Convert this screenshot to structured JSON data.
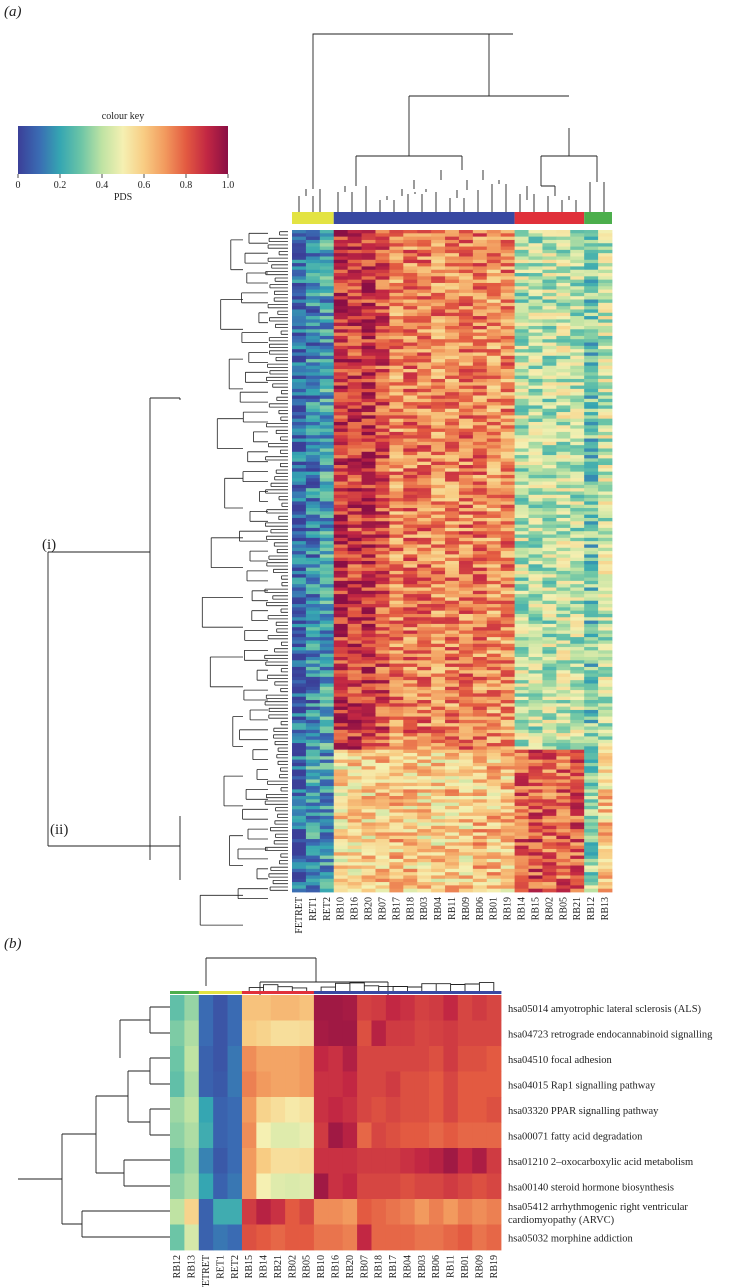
{
  "panels": [
    {
      "label": "(a)",
      "letter": "a"
    },
    {
      "label": "(b)",
      "letter": "b"
    }
  ],
  "colour_key": {
    "title": "colour key",
    "axis_label": "PDS",
    "ticks": [
      "0",
      "0.2",
      "0.4",
      "0.6",
      "0.8",
      "1.0"
    ],
    "tick_values": [
      0,
      0.2,
      0.4,
      0.6,
      0.8,
      1.0
    ],
    "colormap": [
      "#3b3f98",
      "#3a6bb3",
      "#35a6b2",
      "#6cc5a6",
      "#bfe3a3",
      "#f5f0b2",
      "#f8cc83",
      "#f29a5e",
      "#e35a41",
      "#c22743",
      "#8a0f45"
    ]
  },
  "cluster_labels": [
    "(i)",
    "(ii)"
  ],
  "chart_data": [
    {
      "type": "heatmap",
      "panel": "a",
      "columns": [
        "FETRET",
        "RET1",
        "RET2",
        "RB10",
        "RB16",
        "RB20",
        "RB07",
        "RB17",
        "RB18",
        "RB03",
        "RB04",
        "RB11",
        "RB09",
        "RB06",
        "RB01",
        "RB19",
        "RB14",
        "RB15",
        "RB02",
        "RB05",
        "RB21",
        "RB12",
        "RB13"
      ],
      "column_groups": [
        {
          "color": "#e3e342",
          "columns": [
            "FETRET",
            "RET1",
            "RET2"
          ]
        },
        {
          "color": "#3848a2",
          "columns": [
            "RB10",
            "RB16",
            "RB20",
            "RB07",
            "RB17",
            "RB18",
            "RB03",
            "RB04",
            "RB11",
            "RB09",
            "RB06",
            "RB01",
            "RB19"
          ]
        },
        {
          "color": "#e0303a",
          "columns": [
            "RB14",
            "RB15",
            "RB02",
            "RB05",
            "RB21"
          ]
        },
        {
          "color": "#4cae4c",
          "columns": [
            "RB12",
            "RB13"
          ]
        }
      ],
      "row_count": 200,
      "row_clusters": [
        {
          "label": "(i)",
          "rows": 157
        },
        {
          "label": "(ii)",
          "rows": 43
        }
      ],
      "column_profile_cluster_i": [
        0.08,
        0.15,
        0.2,
        0.88,
        0.86,
        0.88,
        0.82,
        0.72,
        0.74,
        0.74,
        0.72,
        0.72,
        0.74,
        0.74,
        0.7,
        0.72,
        0.4,
        0.4,
        0.4,
        0.42,
        0.4,
        0.3,
        0.42
      ],
      "column_profile_cluster_ii": [
        0.08,
        0.2,
        0.2,
        0.55,
        0.58,
        0.58,
        0.6,
        0.62,
        0.6,
        0.58,
        0.58,
        0.6,
        0.58,
        0.62,
        0.62,
        0.6,
        0.8,
        0.82,
        0.78,
        0.78,
        0.8,
        0.35,
        0.6
      ],
      "value_range": [
        0,
        1
      ]
    },
    {
      "type": "heatmap",
      "panel": "b",
      "columns": [
        "RB12",
        "RB13",
        "FETRET",
        "RET1",
        "RET2",
        "RB15",
        "RB14",
        "RB21",
        "RB02",
        "RB05",
        "RB10",
        "RB16",
        "RB20",
        "RB07",
        "RB18",
        "RB17",
        "RB04",
        "RB03",
        "RB06",
        "RB11",
        "RB01",
        "RB09",
        "RB19"
      ],
      "column_group_colors": [
        "#4cae4c",
        "#4cae4c",
        "#e3e342",
        "#e3e342",
        "#e3e342",
        "#e0303a",
        "#e0303a",
        "#e0303a",
        "#e0303a",
        "#e0303a",
        "#3848a2",
        "#3848a2",
        "#3848a2",
        "#3848a2",
        "#3848a2",
        "#3848a2",
        "#3848a2",
        "#3848a2",
        "#3848a2",
        "#3848a2",
        "#3848a2",
        "#3848a2",
        "#3848a2"
      ],
      "rows": [
        "hsa05014 amyotrophic lateral sclerosis (ALS)",
        "hsa04723 retrograde endocannabinoid signalling",
        "hsa04510 focal adhesion",
        "hsa04015 Rap1 signalling pathway",
        "hsa03320 PPAR signalling pathway",
        "hsa00071 fatty acid degradation",
        "hsa01210 2–oxocarboxylic acid metabolism",
        "hsa00140 steroid hormone biosynthesis",
        "hsa05412 arrhythmogenic right ventricular cardiomyopathy (ARVC)",
        "hsa05032 morphine addiction"
      ],
      "values": [
        [
          0.28,
          0.35,
          0.1,
          0.05,
          0.1,
          0.62,
          0.62,
          0.64,
          0.64,
          0.62,
          0.96,
          0.96,
          0.95,
          0.85,
          0.86,
          0.9,
          0.88,
          0.85,
          0.86,
          0.9,
          0.84,
          0.86,
          0.84
        ],
        [
          0.32,
          0.38,
          0.1,
          0.05,
          0.1,
          0.6,
          0.58,
          0.55,
          0.55,
          0.56,
          0.95,
          0.96,
          0.96,
          0.82,
          0.92,
          0.86,
          0.86,
          0.84,
          0.85,
          0.86,
          0.84,
          0.84,
          0.84
        ],
        [
          0.3,
          0.4,
          0.08,
          0.05,
          0.12,
          0.72,
          0.68,
          0.68,
          0.68,
          0.7,
          0.9,
          0.88,
          0.93,
          0.84,
          0.84,
          0.84,
          0.84,
          0.84,
          0.82,
          0.86,
          0.82,
          0.82,
          0.8
        ],
        [
          0.28,
          0.38,
          0.08,
          0.06,
          0.12,
          0.74,
          0.7,
          0.68,
          0.68,
          0.7,
          0.88,
          0.88,
          0.9,
          0.84,
          0.84,
          0.86,
          0.82,
          0.82,
          0.8,
          0.84,
          0.8,
          0.8,
          0.8
        ],
        [
          0.36,
          0.4,
          0.2,
          0.08,
          0.1,
          0.7,
          0.58,
          0.55,
          0.52,
          0.54,
          0.88,
          0.9,
          0.88,
          0.84,
          0.82,
          0.84,
          0.82,
          0.82,
          0.8,
          0.84,
          0.8,
          0.8,
          0.82
        ],
        [
          0.34,
          0.38,
          0.22,
          0.08,
          0.1,
          0.72,
          0.5,
          0.46,
          0.46,
          0.48,
          0.86,
          0.96,
          0.92,
          0.78,
          0.84,
          0.82,
          0.8,
          0.8,
          0.78,
          0.8,
          0.78,
          0.78,
          0.78
        ],
        [
          0.3,
          0.36,
          0.14,
          0.06,
          0.1,
          0.7,
          0.6,
          0.55,
          0.55,
          0.56,
          0.88,
          0.88,
          0.88,
          0.86,
          0.86,
          0.86,
          0.88,
          0.9,
          0.92,
          0.96,
          0.9,
          0.94,
          0.86
        ],
        [
          0.34,
          0.38,
          0.2,
          0.08,
          0.12,
          0.7,
          0.5,
          0.46,
          0.45,
          0.46,
          0.96,
          0.88,
          0.9,
          0.84,
          0.84,
          0.84,
          0.82,
          0.84,
          0.84,
          0.86,
          0.84,
          0.82,
          0.84
        ],
        [
          0.4,
          0.58,
          0.08,
          0.22,
          0.22,
          0.86,
          0.92,
          0.88,
          0.8,
          0.84,
          0.72,
          0.72,
          0.7,
          0.8,
          0.78,
          0.76,
          0.74,
          0.7,
          0.74,
          0.7,
          0.74,
          0.72,
          0.74
        ],
        [
          0.3,
          0.44,
          0.08,
          0.12,
          0.1,
          0.82,
          0.8,
          0.78,
          0.8,
          0.8,
          0.76,
          0.76,
          0.74,
          0.9,
          0.78,
          0.78,
          0.78,
          0.76,
          0.76,
          0.78,
          0.8,
          0.76,
          0.78
        ]
      ],
      "value_range": [
        0,
        1
      ]
    }
  ]
}
